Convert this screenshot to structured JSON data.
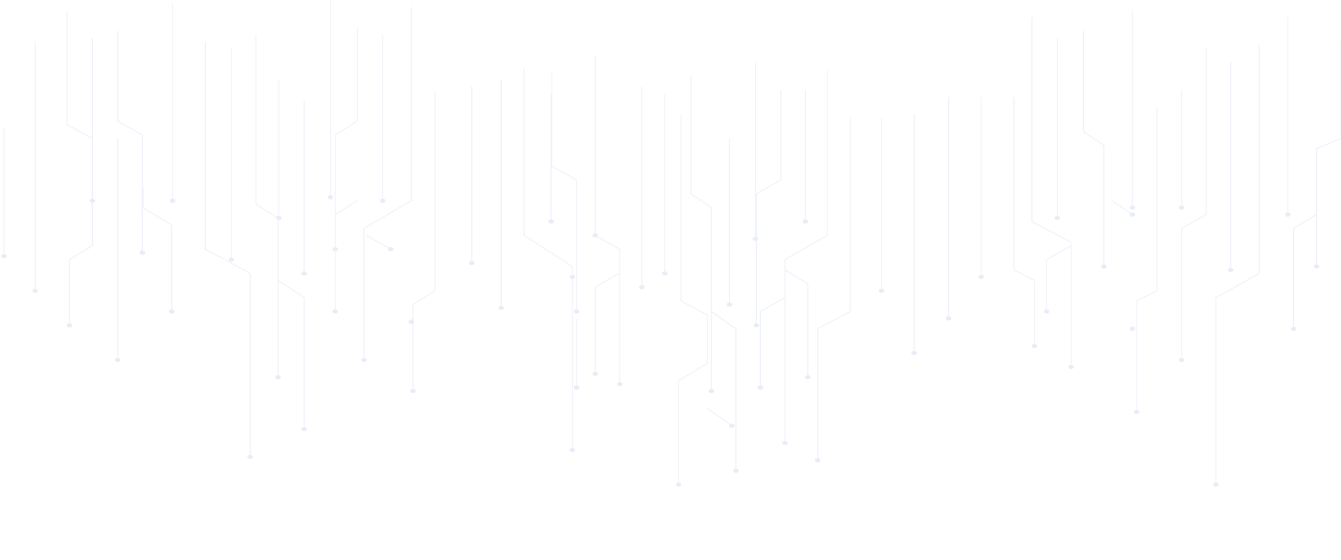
{
  "background": {
    "color": "#ffffff",
    "pattern": "circuit-traces",
    "trace_color": "#eef1f8",
    "node_color": "#e8ecf6"
  }
}
